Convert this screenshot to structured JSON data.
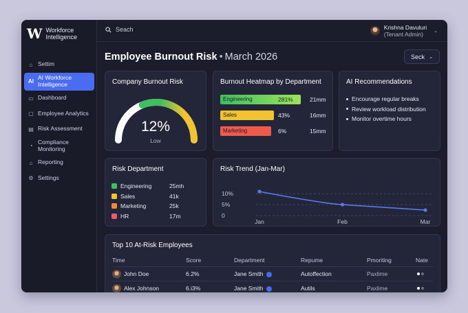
{
  "brand": {
    "logo": "W",
    "line1": "Workforce",
    "line2": "Intelligence"
  },
  "sidebar": {
    "items": [
      {
        "label": "Settim",
        "icon": "home-icon"
      },
      {
        "label": "AI Workforce Intelligence",
        "icon": "ai-icon",
        "active": true
      },
      {
        "label": "Dashboard",
        "icon": "dashboard-icon"
      },
      {
        "label": "Employee Analytics",
        "icon": "analytics-icon"
      },
      {
        "label": "Risk Assessment",
        "icon": "clipboard-icon"
      },
      {
        "label": "Compliance Monitoring",
        "icon": "gauge-icon"
      },
      {
        "label": "Reporting",
        "icon": "home-icon"
      },
      {
        "label": "Settings",
        "icon": "gear-icon"
      }
    ]
  },
  "topbar": {
    "search_placeholder": "Seach",
    "user_name": "Krishna Davuluri",
    "user_role": "(Tenant Admin)"
  },
  "header": {
    "title": "Employee Burnout Risk",
    "period": "March 2026",
    "select_label": "Seck"
  },
  "burnout": {
    "title": "Company Burnout Risk",
    "value": "12%",
    "level": "Low",
    "gauge_fraction": 0.12,
    "colors": [
      "#3fbf5e",
      "#f2c230"
    ]
  },
  "heatmap": {
    "title": "Burnout Heatmap by Department",
    "rows": [
      {
        "dept": "Engineering",
        "pct": "281%",
        "val": "21mm",
        "color": "#4fc45a"
      },
      {
        "dept": "Sales",
        "pct": "43%",
        "val": "16mm",
        "color": "#f2c230"
      },
      {
        "dept": "Marketing",
        "pct": "6%",
        "val": "15mm",
        "color": "#ef5a4a"
      }
    ]
  },
  "recommendations": {
    "title": "AI Recommendations",
    "items": [
      "Encourage regular breaks",
      "Review workload distribution",
      "Monitor overtime hours"
    ]
  },
  "risk_department": {
    "title": "Risk Department",
    "rows": [
      {
        "dept": "Engineering",
        "val": "25mh",
        "color": "#3fbf5e"
      },
      {
        "dept": "Sales",
        "val": "41k",
        "color": "#f2c230"
      },
      {
        "dept": "Marketing",
        "val": "25k",
        "color": "#f08a3a"
      },
      {
        "dept": "HR",
        "val": "17m",
        "color": "#ef5a6a"
      }
    ]
  },
  "chart_data": {
    "type": "line",
    "title": "Risk Trend (Jan-Mar)",
    "categories": [
      "Jan",
      "Feb",
      "Mar"
    ],
    "series": [
      {
        "values": [
          11,
          5,
          2.5
        ]
      }
    ],
    "yticks": [
      "10%",
      "5%",
      "0"
    ],
    "ylim": [
      0,
      12
    ],
    "grid": true,
    "line_color": "#5b78f0"
  },
  "employees": {
    "title": "Top 10 At-Risk Employees",
    "headers": [
      "Time",
      "Score",
      "Department",
      "Repume",
      "Pmoriting",
      "Nate"
    ],
    "rows": [
      {
        "name": "John Doe",
        "score": "6.2%",
        "dept": "Jane Smith",
        "repume": "Autoffection",
        "pmor": "Paxlime"
      },
      {
        "name": "Alex Johnson",
        "score": "6.i3%",
        "dept": "Jane Smith",
        "repume": "Autils",
        "pmor": "Paxlime"
      }
    ]
  }
}
